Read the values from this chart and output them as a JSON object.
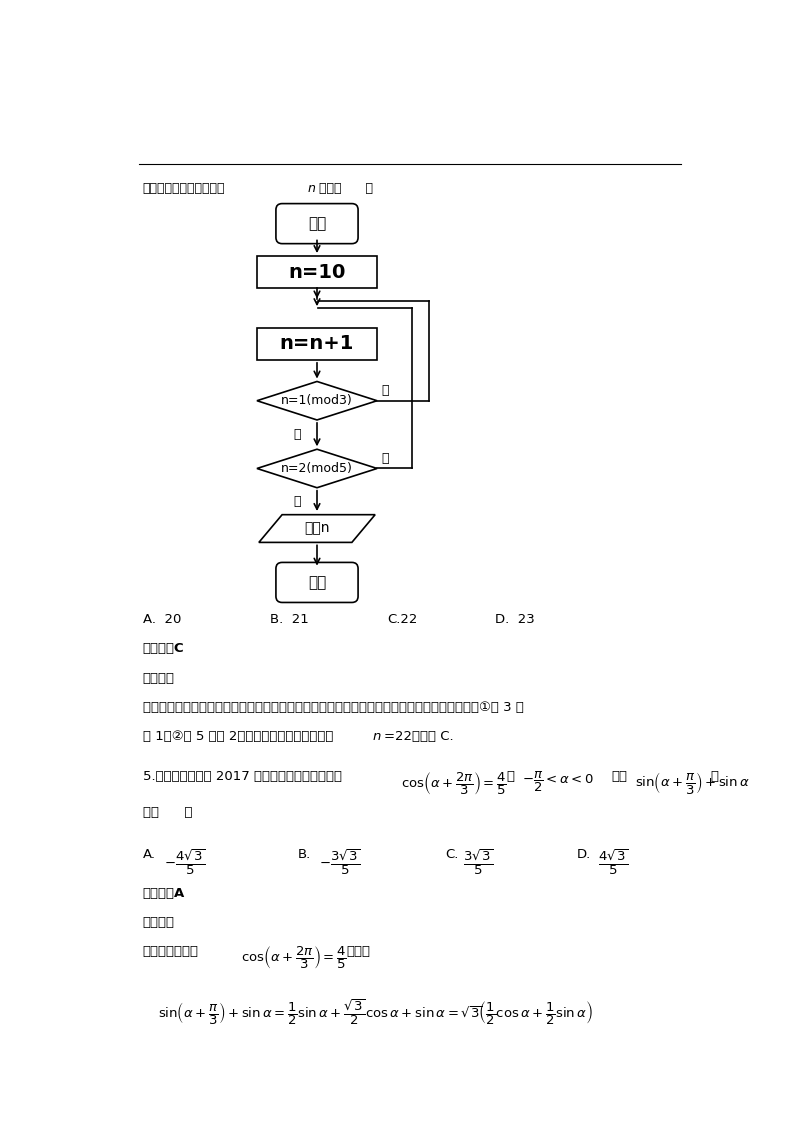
{
  "bg_color": "#ffffff",
  "page_width": 8.0,
  "page_height": 11.32,
  "start_label": "开始",
  "box1_label": "n=10",
  "box2_label": "n=n+1",
  "diamond1_label": "n=1(mod3)",
  "diamond1_no": "否",
  "diamond1_yes": "是",
  "diamond2_label": "n=2(mod5)",
  "diamond2_no": "否",
  "diamond2_yes": "是",
  "output_label": "输出n",
  "end_label": "结束",
  "intro_text1": "行该程序框图，则输出的",
  "intro_italic": "n",
  "intro_text2": "等于（      ）",
  "opt1_a": "A.  20",
  "opt1_b": "B.  21",
  "opt1_c": "C.22",
  "opt1_d": "D.  23",
  "answer1": "【答案】C",
  "analysis1_title": "【解析】",
  "analysis1_line1": "试题分析：由已知中的程序框图得：该程序的功能是利用循环结构计算出并输出同时满足条件：①被 3 除",
  "analysis1_line2a": "余 1，②被 5 除余 2，最小为两位数，所输出的",
  "analysis1_italic": "n",
  "analysis1_line2b": "=22，故选 C.",
  "q5_text1": "5.【四川省自贡市 2017 届高三第一次诊断】已知",
  "q5_mid1": "，",
  "q5_mid2": "，则",
  "q5_end": "等",
  "q5_line2": "于（      ）",
  "answer2": "【答案】A",
  "analysis2_title": "【解析】",
  "analysis2_text1": "试题分析：因为",
  "analysis2_text2": "，所以"
}
